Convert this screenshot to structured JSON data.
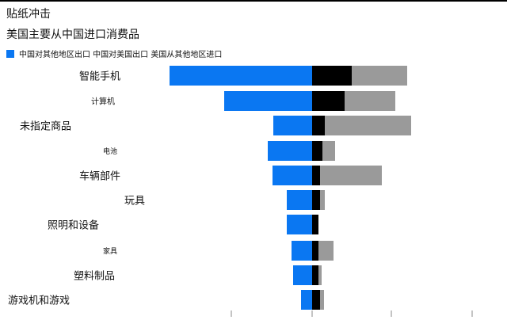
{
  "header": {
    "title": "贴纸冲击",
    "chart_title": "美国主要从中国进口消费品"
  },
  "legend_text": "中国对其他地区出口 中国对美国出口 美国从其他地区进口",
  "colors": {
    "china_to_rest_of_world": "#0a77f2",
    "china_to_us": "#000000",
    "us_from_rest_of_world": "#9a9a9a"
  },
  "chart_data": {
    "type": "bar",
    "title": "美国主要从中国进口消费品",
    "categories": [
      "智能手机",
      "计算机",
      "未指定商品",
      "电池",
      "车辆部件",
      "玩具",
      "照明和设备",
      "家具",
      "塑料制品",
      "游戏机和游戏"
    ],
    "series": [
      {
        "name": "中国对其他地区出口",
        "values": [
          -180,
          -111,
          -49,
          -56,
          -50,
          -32,
          -32,
          -26,
          -24,
          -14
        ]
      },
      {
        "name": "中国对美国出口",
        "values": [
          50,
          41,
          16,
          13,
          10,
          10,
          8,
          8,
          8,
          10
        ]
      },
      {
        "name": "美国从其他地区进口",
        "values": [
          70,
          64,
          109,
          16,
          78,
          6,
          0,
          19,
          4,
          5
        ]
      }
    ],
    "xlim": [
      -220,
      220
    ],
    "legend_position": "top-left"
  }
}
